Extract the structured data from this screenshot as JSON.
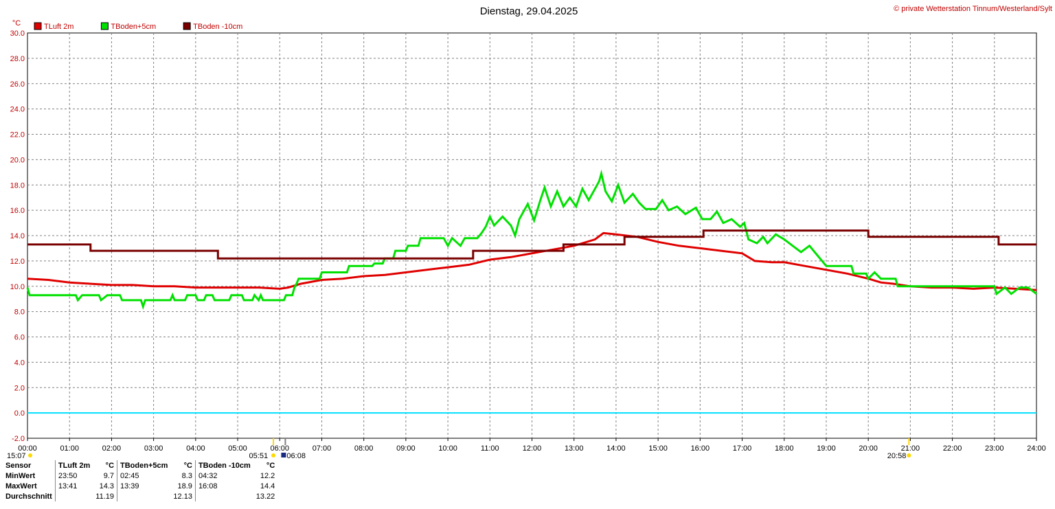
{
  "title": "Dienstag, 29.04.2025",
  "copyright": "© private Wetterstation Tinnum/Westerland/Sylt",
  "unit_label": "°C",
  "sun": {
    "day_length": "15:07",
    "sunrise": "05:51",
    "civil_dawn": "06:08",
    "sunset": "20:58"
  },
  "colors": {
    "grid": "#808080",
    "zero_line": "#00e0ff",
    "axis_text": "#c00000"
  },
  "chart_data": {
    "type": "line",
    "title": "Dienstag, 29.04.2025",
    "xlabel": "",
    "ylabel": "°C",
    "xlim": [
      0,
      24
    ],
    "ylim": [
      -2,
      30
    ],
    "y_ticks": [
      "-2.0",
      "0.0",
      "2.0",
      "4.0",
      "6.0",
      "8.0",
      "10.0",
      "12.0",
      "14.0",
      "16.0",
      "18.0",
      "20.0",
      "22.0",
      "24.0",
      "26.0",
      "28.0",
      "30.0"
    ],
    "x_ticks": [
      "00:00",
      "01:00",
      "02:00",
      "03:00",
      "04:00",
      "05:00",
      "06:00",
      "07:00",
      "08:00",
      "09:00",
      "10:00",
      "11:00",
      "12:00",
      "13:00",
      "14:00",
      "15:00",
      "16:00",
      "17:00",
      "18:00",
      "19:00",
      "20:00",
      "21:00",
      "22:00",
      "23:00",
      "24:00"
    ],
    "grid": true,
    "legend_position": "top-left",
    "series": [
      {
        "name": "TLuft 2m",
        "color": "#e00000",
        "points": [
          [
            0,
            10.6
          ],
          [
            0.5,
            10.5
          ],
          [
            1,
            10.3
          ],
          [
            1.5,
            10.2
          ],
          [
            2,
            10.1
          ],
          [
            2.5,
            10.1
          ],
          [
            3,
            10.0
          ],
          [
            3.5,
            10.0
          ],
          [
            4,
            9.9
          ],
          [
            4.5,
            9.9
          ],
          [
            5,
            9.9
          ],
          [
            5.5,
            9.9
          ],
          [
            6,
            9.8
          ],
          [
            6.2,
            9.9
          ],
          [
            6.5,
            10.2
          ],
          [
            7,
            10.5
          ],
          [
            7.5,
            10.6
          ],
          [
            8,
            10.8
          ],
          [
            8.5,
            10.9
          ],
          [
            9,
            11.1
          ],
          [
            9.5,
            11.3
          ],
          [
            10,
            11.5
          ],
          [
            10.5,
            11.7
          ],
          [
            11,
            12.1
          ],
          [
            11.5,
            12.3
          ],
          [
            12,
            12.6
          ],
          [
            12.5,
            12.9
          ],
          [
            13,
            13.2
          ],
          [
            13.5,
            13.7
          ],
          [
            13.7,
            14.2
          ],
          [
            14,
            14.1
          ],
          [
            14.5,
            13.9
          ],
          [
            15,
            13.5
          ],
          [
            15.5,
            13.2
          ],
          [
            16,
            13.0
          ],
          [
            16.5,
            12.8
          ],
          [
            17,
            12.6
          ],
          [
            17.3,
            12.0
          ],
          [
            17.7,
            11.9
          ],
          [
            18,
            11.9
          ],
          [
            18.5,
            11.6
          ],
          [
            19,
            11.3
          ],
          [
            19.5,
            11.0
          ],
          [
            20,
            10.6
          ],
          [
            20.3,
            10.3
          ],
          [
            20.6,
            10.2
          ],
          [
            21,
            10.0
          ],
          [
            21.5,
            9.9
          ],
          [
            22,
            9.9
          ],
          [
            22.5,
            9.8
          ],
          [
            23,
            9.9
          ],
          [
            23.5,
            9.8
          ],
          [
            24,
            9.7
          ]
        ]
      },
      {
        "name": "TBoden+5cm",
        "color": "#00e000",
        "points": [
          [
            0,
            9.9
          ],
          [
            0.05,
            9.3
          ],
          [
            1.15,
            9.3
          ],
          [
            1.2,
            8.9
          ],
          [
            1.3,
            9.3
          ],
          [
            1.7,
            9.3
          ],
          [
            1.75,
            8.9
          ],
          [
            1.9,
            9.3
          ],
          [
            2.2,
            9.3
          ],
          [
            2.25,
            8.9
          ],
          [
            2.7,
            8.9
          ],
          [
            2.75,
            8.4
          ],
          [
            2.8,
            8.9
          ],
          [
            3.4,
            8.9
          ],
          [
            3.45,
            9.3
          ],
          [
            3.5,
            8.9
          ],
          [
            3.75,
            8.9
          ],
          [
            3.8,
            9.3
          ],
          [
            4,
            9.3
          ],
          [
            4.05,
            8.9
          ],
          [
            4.2,
            8.9
          ],
          [
            4.25,
            9.3
          ],
          [
            4.4,
            9.3
          ],
          [
            4.45,
            8.9
          ],
          [
            4.8,
            8.9
          ],
          [
            4.85,
            9.3
          ],
          [
            5.1,
            9.3
          ],
          [
            5.15,
            8.9
          ],
          [
            5.35,
            8.9
          ],
          [
            5.4,
            9.3
          ],
          [
            5.5,
            8.9
          ],
          [
            5.55,
            9.3
          ],
          [
            5.6,
            8.9
          ],
          [
            6.1,
            8.9
          ],
          [
            6.15,
            9.3
          ],
          [
            6.3,
            9.3
          ],
          [
            6.35,
            9.9
          ],
          [
            6.4,
            10.2
          ],
          [
            6.45,
            10.6
          ],
          [
            6.95,
            10.6
          ],
          [
            7,
            11.1
          ],
          [
            7.6,
            11.1
          ],
          [
            7.65,
            11.6
          ],
          [
            8.2,
            11.6
          ],
          [
            8.25,
            11.8
          ],
          [
            8.45,
            11.8
          ],
          [
            8.5,
            12.2
          ],
          [
            8.7,
            12.2
          ],
          [
            8.75,
            12.8
          ],
          [
            9,
            12.8
          ],
          [
            9.05,
            13.2
          ],
          [
            9.3,
            13.2
          ],
          [
            9.35,
            13.8
          ],
          [
            9.9,
            13.8
          ],
          [
            10,
            13.2
          ],
          [
            10.1,
            13.8
          ],
          [
            10.3,
            13.2
          ],
          [
            10.4,
            13.8
          ],
          [
            10.7,
            13.8
          ],
          [
            10.8,
            14.2
          ],
          [
            10.9,
            14.7
          ],
          [
            11,
            15.5
          ],
          [
            11.1,
            14.8
          ],
          [
            11.3,
            15.5
          ],
          [
            11.5,
            14.8
          ],
          [
            11.6,
            14.0
          ],
          [
            11.7,
            15.3
          ],
          [
            11.9,
            16.5
          ],
          [
            12.05,
            15.2
          ],
          [
            12.2,
            16.8
          ],
          [
            12.3,
            17.8
          ],
          [
            12.45,
            16.3
          ],
          [
            12.6,
            17.5
          ],
          [
            12.75,
            16.3
          ],
          [
            12.9,
            17.0
          ],
          [
            13.05,
            16.3
          ],
          [
            13.2,
            17.7
          ],
          [
            13.35,
            16.8
          ],
          [
            13.5,
            17.7
          ],
          [
            13.6,
            18.3
          ],
          [
            13.65,
            18.9
          ],
          [
            13.75,
            17.5
          ],
          [
            13.9,
            16.7
          ],
          [
            14.05,
            18.0
          ],
          [
            14.2,
            16.6
          ],
          [
            14.4,
            17.3
          ],
          [
            14.55,
            16.6
          ],
          [
            14.7,
            16.1
          ],
          [
            14.95,
            16.1
          ],
          [
            15.1,
            16.8
          ],
          [
            15.25,
            16.0
          ],
          [
            15.45,
            16.3
          ],
          [
            15.65,
            15.7
          ],
          [
            15.9,
            16.2
          ],
          [
            16.05,
            15.3
          ],
          [
            16.25,
            15.3
          ],
          [
            16.4,
            15.9
          ],
          [
            16.55,
            15.0
          ],
          [
            16.75,
            15.3
          ],
          [
            16.95,
            14.7
          ],
          [
            17.05,
            15.0
          ],
          [
            17.15,
            13.7
          ],
          [
            17.35,
            13.4
          ],
          [
            17.5,
            13.9
          ],
          [
            17.6,
            13.4
          ],
          [
            17.8,
            14.1
          ],
          [
            18.0,
            13.7
          ],
          [
            18.2,
            13.2
          ],
          [
            18.4,
            12.7
          ],
          [
            18.6,
            13.2
          ],
          [
            18.8,
            12.4
          ],
          [
            19.0,
            11.6
          ],
          [
            19.6,
            11.6
          ],
          [
            19.65,
            11.0
          ],
          [
            19.95,
            11.0
          ],
          [
            20.0,
            10.6
          ],
          [
            20.15,
            11.1
          ],
          [
            20.3,
            10.6
          ],
          [
            20.65,
            10.6
          ],
          [
            20.7,
            10.0
          ],
          [
            22.8,
            10.0
          ],
          [
            23.0,
            10.0
          ],
          [
            23.05,
            9.4
          ],
          [
            23.25,
            9.9
          ],
          [
            23.4,
            9.4
          ],
          [
            23.6,
            9.9
          ],
          [
            23.8,
            9.9
          ],
          [
            24,
            9.4
          ]
        ]
      },
      {
        "name": "TBoden -10cm",
        "color": "#7a0000",
        "points": [
          [
            0,
            13.3
          ],
          [
            1.5,
            13.3
          ],
          [
            1.5,
            12.8
          ],
          [
            4.53,
            12.8
          ],
          [
            4.53,
            12.2
          ],
          [
            10.6,
            12.2
          ],
          [
            10.6,
            12.8
          ],
          [
            12.75,
            12.8
          ],
          [
            12.75,
            13.3
          ],
          [
            14.2,
            13.3
          ],
          [
            14.2,
            13.9
          ],
          [
            16.08,
            13.9
          ],
          [
            16.08,
            14.4
          ],
          [
            20.0,
            14.4
          ],
          [
            20.0,
            13.9
          ],
          [
            23.1,
            13.9
          ],
          [
            23.1,
            13.3
          ],
          [
            24,
            13.3
          ]
        ]
      },
      {
        "name": "",
        "color": "#00e0ff",
        "points": [
          [
            0,
            0
          ],
          [
            24,
            0
          ]
        ]
      }
    ]
  },
  "stats": {
    "row_labels": [
      "Sensor",
      "MinWert",
      "MaxWert",
      "Durchschnitt"
    ],
    "unit": "°C",
    "sensors": [
      {
        "name": "TLuft 2m",
        "min_time": "23:50",
        "min": "9.7",
        "max_time": "13:41",
        "max": "14.3",
        "avg": "11.19"
      },
      {
        "name": "TBoden+5cm",
        "min_time": "02:45",
        "min": "8.3",
        "max_time": "13:39",
        "max": "18.9",
        "avg": "12.13"
      },
      {
        "name": "TBoden -10cm",
        "min_time": "04:32",
        "min": "12.2",
        "max_time": "16:08",
        "max": "14.4",
        "avg": "13.22"
      }
    ]
  }
}
